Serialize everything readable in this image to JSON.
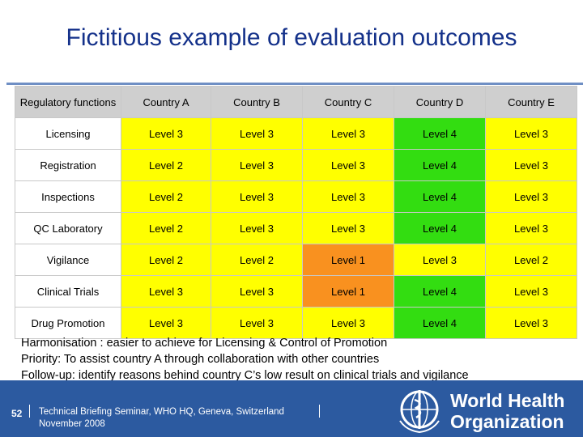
{
  "title": "Fictitious example of evaluation outcomes",
  "table": {
    "header": [
      "Regulatory functions",
      "Country A",
      "Country B",
      "Country C",
      "Country D",
      "Country E"
    ],
    "rows": [
      {
        "label": "Licensing",
        "cells": [
          "Level 3",
          "Level 3",
          "Level 3",
          "Level 4",
          "Level 3"
        ]
      },
      {
        "label": "Registration",
        "cells": [
          "Level 2",
          "Level 3",
          "Level 3",
          "Level 4",
          "Level 3"
        ]
      },
      {
        "label": "Inspections",
        "cells": [
          "Level 2",
          "Level 3",
          "Level 3",
          "Level 4",
          "Level 3"
        ]
      },
      {
        "label": "QC Laboratory",
        "cells": [
          "Level 2",
          "Level 3",
          "Level 3",
          "Level 4",
          "Level 3"
        ]
      },
      {
        "label": "Vigilance",
        "cells": [
          "Level 2",
          "Level 2",
          "Level 1",
          "Level 3",
          "Level 2"
        ]
      },
      {
        "label": "Clinical Trials",
        "cells": [
          "Level 3",
          "Level 3",
          "Level 1",
          "Level 4",
          "Level 3"
        ]
      },
      {
        "label": "Drug Promotion",
        "cells": [
          "Level 3",
          "Level 3",
          "Level 3",
          "Level 4",
          "Level 3"
        ]
      }
    ]
  },
  "level_colors": {
    "Level 1": "#f9911f",
    "Level 2": "#ffff00",
    "Level 3": "#ffff00",
    "Level 4": "#33dd11"
  },
  "header_color": "#cfcfcf",
  "notes": [
    "Harmonisation : easier to achieve for Licensing & Control of Promotion",
    "Priority: To assist country A through collaboration with other countries",
    "Follow-up: identify reasons behind country C’s low result on clinical trials and vigilance"
  ],
  "footer": {
    "page_number": "52",
    "line1": "Technical Briefing Seminar, WHO HQ, Geneva, Switzerland",
    "line2": "November 2008",
    "org_line1": "World Health",
    "org_line2": "Organization",
    "emblem_icon": "who-emblem-icon",
    "bar_color": "#2c5aa0"
  }
}
